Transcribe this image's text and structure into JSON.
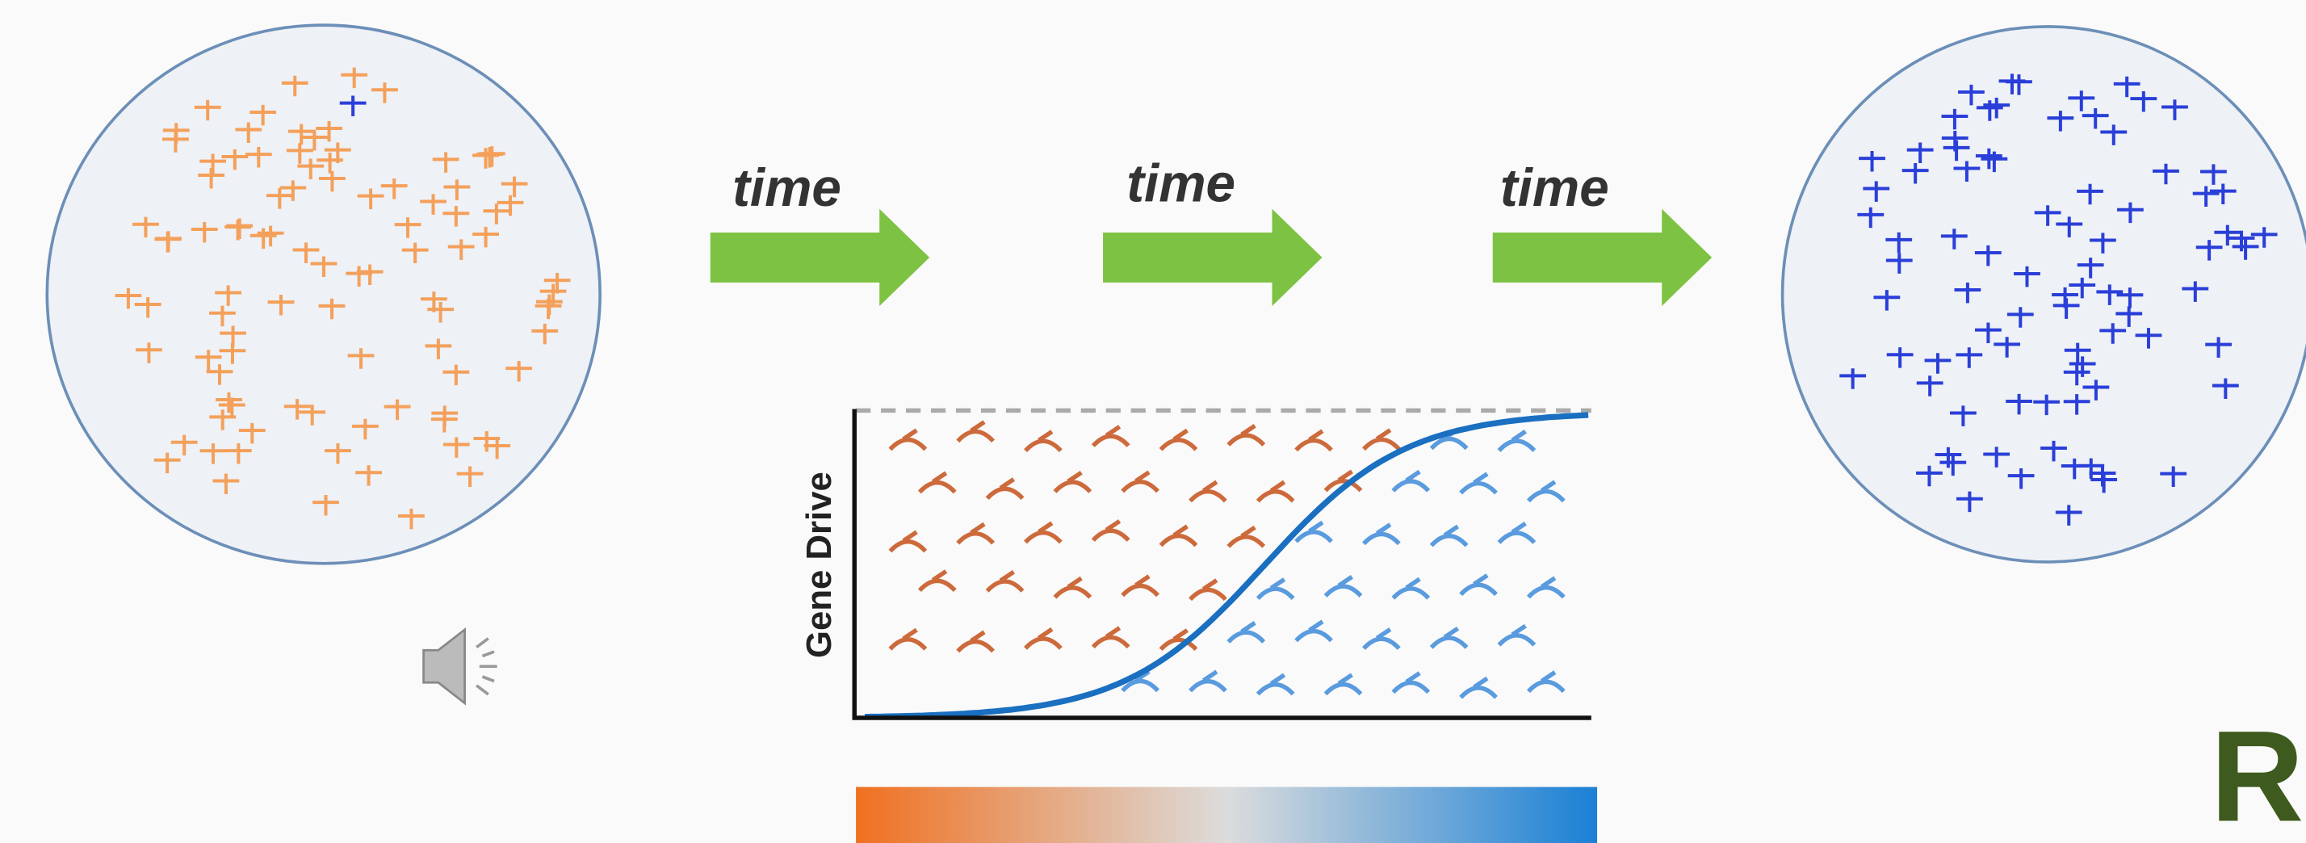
{
  "arrows": [
    {
      "label": "time"
    },
    {
      "label": "time"
    },
    {
      "label": "time"
    }
  ],
  "chart": {
    "y_label": "Gene Drive"
  },
  "corner_letter": "R"
}
